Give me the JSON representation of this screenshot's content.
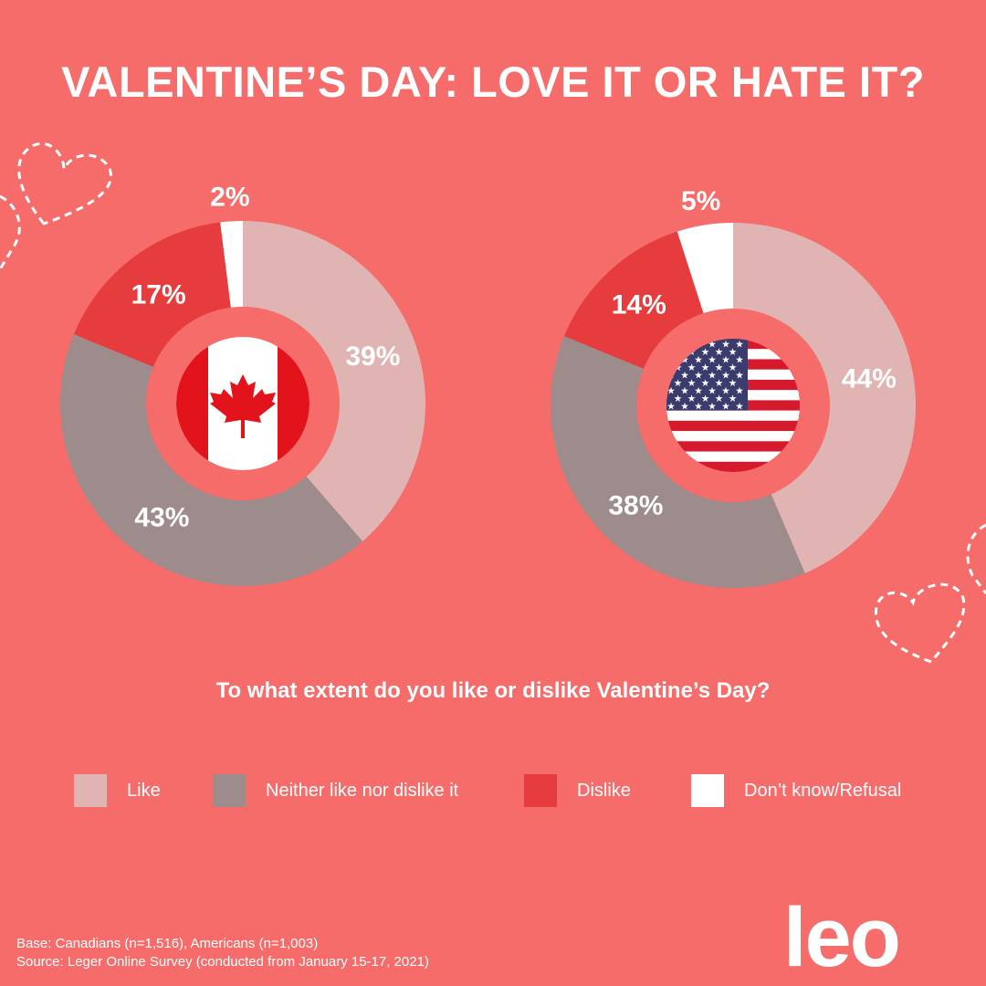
{
  "title": "VALENTINE’S DAY: LOVE IT OR HATE IT?",
  "question": "To what extent do you like or dislike Valentine’s Day?",
  "colors": {
    "background": "#f56c6a",
    "like": "#e1b4b4",
    "neither": "#9e8b8b",
    "dislike": "#e63c3e",
    "dont_know": "#ffffff"
  },
  "chart_data": [
    {
      "type": "pie",
      "variant": "donut",
      "country": "Canada",
      "flag": "canada-flag",
      "categories": [
        "Like",
        "Neither like nor dislike it",
        "Dislike",
        "Don’t know/Refusal"
      ],
      "values": [
        39,
        43,
        17,
        2
      ],
      "labels": [
        "39%",
        "43%",
        "17%",
        "2%"
      ]
    },
    {
      "type": "pie",
      "variant": "donut",
      "country": "United States",
      "flag": "us-flag",
      "categories": [
        "Like",
        "Neither like nor dislike it",
        "Dislike",
        "Don’t know/Refusal"
      ],
      "values": [
        44,
        38,
        14,
        5
      ],
      "labels": [
        "44%",
        "38%",
        "14%",
        "5%"
      ]
    }
  ],
  "legend": [
    {
      "label": "Like",
      "color": "#e1b4b4"
    },
    {
      "label": "Neither like nor dislike it",
      "color": "#9e8b8b"
    },
    {
      "label": "Dislike",
      "color": "#e63c3e"
    },
    {
      "label": "Don’t know/Refusal",
      "color": "#ffffff"
    }
  ],
  "footer": {
    "base": "Base: Canadians (n=1,516), Americans (n=1,003)",
    "source": "Source: Leger Online Survey (conducted from January 15-17, 2021)"
  },
  "logo": "leo"
}
